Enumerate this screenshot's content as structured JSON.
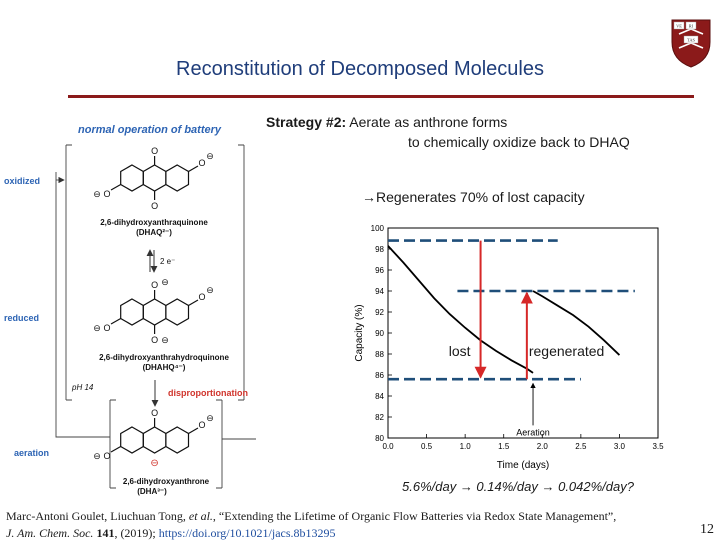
{
  "slide": {
    "title": "Reconstitution of Decomposed Molecules",
    "page_number": "12",
    "accent_color": "#8b1a1a",
    "title_color": "#1f3d7a"
  },
  "logo": {
    "name": "university-shield",
    "letters": [
      "VE",
      "RI",
      "TAS"
    ]
  },
  "diagram": {
    "header": "normal operation of battery",
    "side_labels": {
      "oxidized": "oxidized",
      "reduced": "reduced",
      "aeration": "aeration"
    },
    "molecules": [
      {
        "name": "2,6-dihydroxyanthraquinone",
        "formula": "(DHAQ²⁻)"
      },
      {
        "name": "2,6-dihydroxyanthrahydroquinone",
        "formula": "(DHAHQ⁴⁻)"
      },
      {
        "name": "2,6-dihydroxyanthrone",
        "formula": "(DHA³⁻)"
      }
    ],
    "electron_label": "2 e⁻",
    "ph_label": "pH 14",
    "disproportionation": "disproportionation",
    "minus": "⊖",
    "oxygen": "O",
    "blue": "#2d64b4",
    "red": "#d0342c"
  },
  "strategy": {
    "label": "Strategy #2:",
    "line1": " Aerate as anthrone forms",
    "line2": "to chemically oxidize back to DHAQ"
  },
  "regenerates": "→Regenerates 70% of lost capacity",
  "chart_data": {
    "type": "line",
    "xlabel": "Time (days)",
    "ylabel": "Capacity (%)",
    "xlim": [
      0.0,
      3.5
    ],
    "ylim": [
      80,
      100
    ],
    "xticks": [
      "0.0",
      "0.5",
      "1.0",
      "1.5",
      "2.0",
      "2.5",
      "3.0",
      "3.5"
    ],
    "yticks": [
      "80",
      "82",
      "84",
      "86",
      "88",
      "90",
      "92",
      "94",
      "96",
      "98",
      "100"
    ],
    "series": [
      {
        "x": [
          0.0,
          0.2,
          0.4,
          0.6,
          0.8,
          1.0,
          1.2,
          1.4,
          1.6,
          1.8,
          1.88
        ],
        "y": [
          98.3,
          96.7,
          95.0,
          93.3,
          91.8,
          90.5,
          89.3,
          88.3,
          87.4,
          86.6,
          86.2
        ]
      },
      {
        "x": [
          1.88,
          2.0,
          2.2,
          2.4,
          2.6,
          2.8,
          3.0
        ],
        "y": [
          94.0,
          93.5,
          92.6,
          91.7,
          90.6,
          89.3,
          87.9
        ]
      }
    ],
    "reference_lines": [
      {
        "y": 98.8,
        "x0": 0.0,
        "x1": 2.2
      },
      {
        "y": 85.6,
        "x0": 0.0,
        "x1": 2.5
      },
      {
        "y": 94.0,
        "x0": 0.9,
        "x1": 3.2
      }
    ],
    "arrows": [
      {
        "label": "lost",
        "x": 1.2,
        "from": 98.8,
        "to": 85.6
      },
      {
        "label": "regenerated",
        "x": 1.8,
        "from": 85.6,
        "to": 94.0
      }
    ],
    "annotation": {
      "text": "Aeration",
      "x": 1.88
    },
    "line_color": "#000000",
    "reference_color": "#1f4e79",
    "arrow_color": "#d62828"
  },
  "rates_text": "5.6%/day → 0.14%/day → 0.042%/day?",
  "citation": {
    "authors": "Marc-Antoni Goulet, Liuchuan Tong, ",
    "etal": "et al.",
    "title": ", “Extending the Lifetime of Organic Flow Batteries via Redox State Management”,",
    "journal": "J. Am. Chem. Soc.",
    "volume": " 141",
    "year": ", (2019); ",
    "doi": "https://doi.org/10.1021/jacs.8b13295"
  }
}
